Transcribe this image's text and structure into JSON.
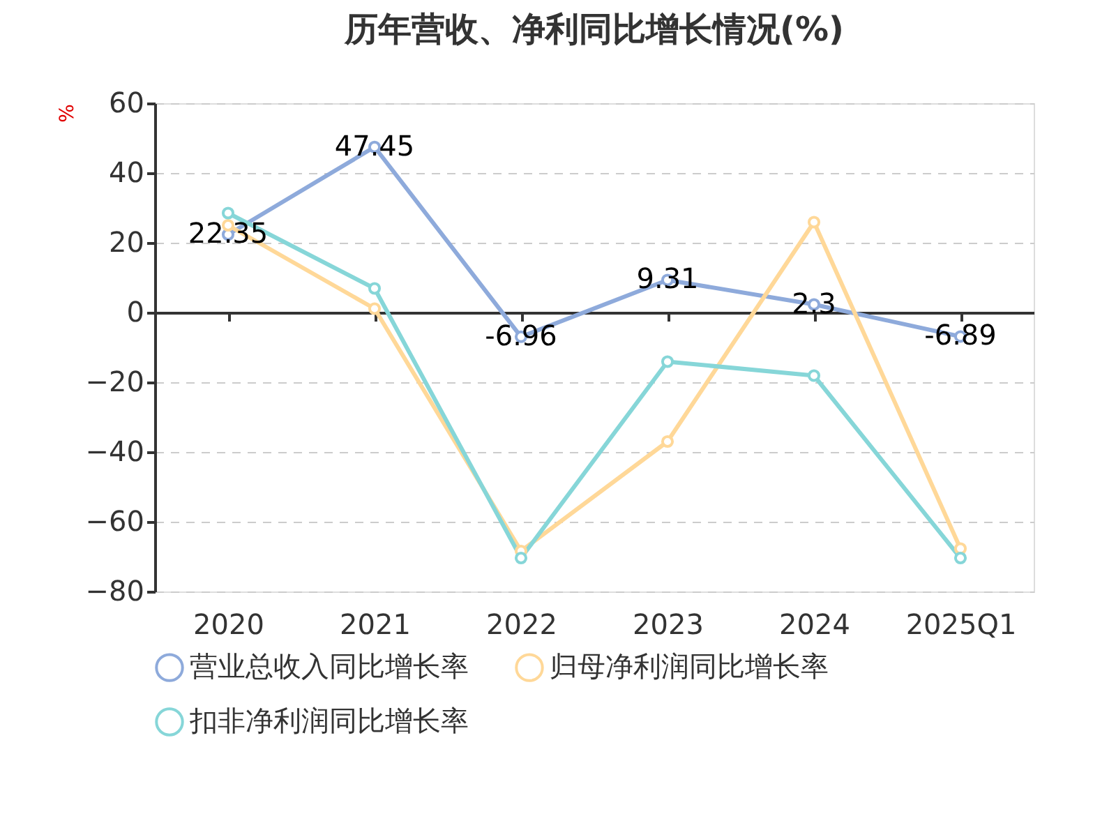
{
  "chart_data": {
    "type": "line",
    "title": "历年营收、净利同比增长情况(%)",
    "ylabel": "%",
    "categories": [
      "2020",
      "2021",
      "2022",
      "2023",
      "2024",
      "2025Q1"
    ],
    "series": [
      {
        "name": "营业总收入同比增长率",
        "color": "#8eaadb",
        "values": [
          22.35,
          47.45,
          -6.96,
          9.31,
          2.3,
          -6.89
        ],
        "value_labels": [
          "22.35",
          "47.45",
          "-6.96",
          "9.31",
          "2.3",
          "-6.89"
        ]
      },
      {
        "name": "归母净利润同比增长率",
        "color": "#ffd898",
        "values": [
          25,
          1.1,
          -68.4,
          -37,
          25.9,
          -67.7
        ]
      },
      {
        "name": "扣非净利润同比增长率",
        "color": "#86d6d8",
        "values": [
          28.5,
          6.9,
          -70.4,
          -14.1,
          -18.1,
          -70.4
        ]
      }
    ],
    "ylim": [
      -80,
      60
    ],
    "yticks": [
      -80,
      -60,
      -40,
      -20,
      0,
      20,
      40,
      60
    ],
    "grid": "y",
    "legend": "bottom",
    "marker": "circle",
    "line_style": "solid"
  }
}
